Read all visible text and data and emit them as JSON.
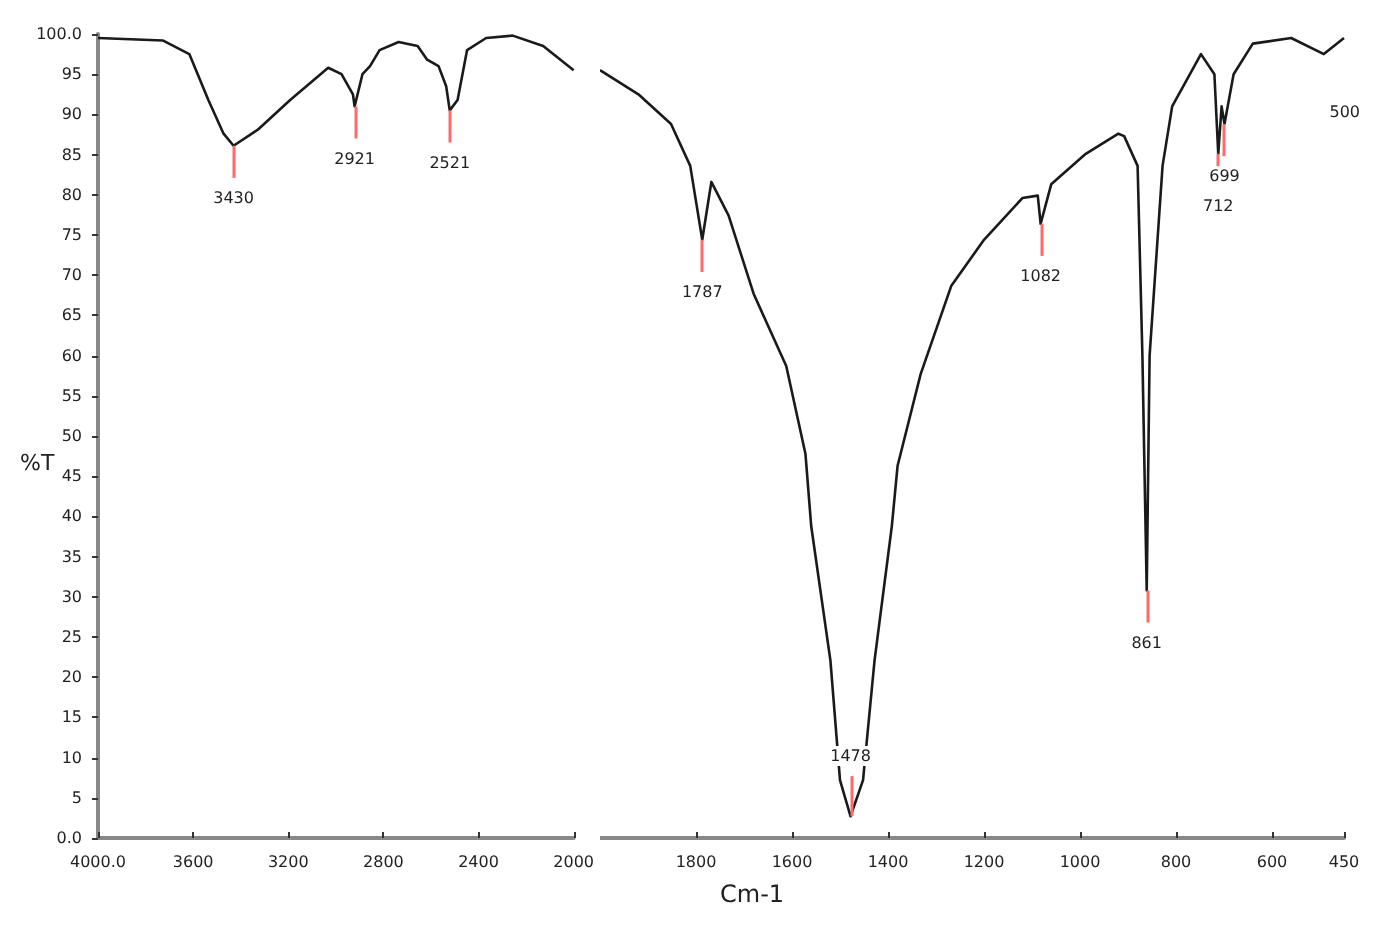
{
  "chart_data": [
    {
      "type": "line",
      "ylabel": "%T",
      "xlim": [
        4000,
        2000
      ],
      "xticks": [
        {
          "value": 4000,
          "label": "4000.0"
        },
        3600,
        3200,
        2800,
        2400,
        2000
      ],
      "ylim": [
        0,
        100
      ],
      "yticks": [
        {
          "value": 0,
          "label": "0.0"
        },
        5,
        10,
        15,
        20,
        25,
        30,
        35,
        40,
        45,
        50,
        55,
        60,
        65,
        70,
        75,
        80,
        85,
        90,
        95,
        {
          "value": 100,
          "label": "100.0"
        }
      ],
      "grid": false,
      "marker": "none",
      "line_style": "solid",
      "series": [
        {
          "color": "#1a1a1a",
          "x": [
            4000,
            3728,
            3616,
            3536,
            3472,
            3430,
            3328,
            3192,
            3032,
            2976,
            2928,
            2921,
            2888,
            2856,
            2816,
            2736,
            2656,
            2616,
            2568,
            2536,
            2521,
            2488,
            2448,
            2368,
            2256,
            2128,
            2000
          ],
          "values": [
            99.5,
            99.2,
            97.5,
            91.8,
            87.6,
            86.1,
            88.1,
            91.8,
            95.8,
            95.0,
            92.5,
            91.0,
            95.0,
            96.0,
            98.0,
            99.0,
            98.5,
            96.8,
            96.0,
            93.5,
            90.5,
            91.8,
            98.0,
            99.5,
            99.8,
            98.5,
            95.5
          ]
        }
      ],
      "annotations": [
        {
          "text": "3430",
          "x": 3430,
          "y": 86.1
        },
        {
          "text": "2921",
          "x": 2921,
          "y": 91.0
        },
        {
          "text": "2521",
          "x": 2521,
          "y": 90.5
        }
      ]
    },
    {
      "type": "line",
      "xlabel": "Cm-1",
      "xlim": [
        2000,
        450
      ],
      "xticks": [
        1800,
        1600,
        1400,
        1200,
        1000,
        800,
        600,
        450
      ],
      "ylim": [
        0,
        100
      ],
      "tick_labels": "x",
      "grid": false,
      "marker": "none",
      "line_style": "solid",
      "series": [
        {
          "color": "#1a1a1a",
          "x": [
            2000,
            1920,
            1852,
            1812,
            1787,
            1768,
            1732,
            1680,
            1612,
            1572,
            1560,
            1520,
            1500,
            1478,
            1452,
            1428,
            1392,
            1380,
            1332,
            1268,
            1200,
            1120,
            1088,
            1082,
            1060,
            988,
            920,
            908,
            880,
            870,
            861,
            855,
            828,
            808,
            748,
            720,
            712,
            705,
            699,
            680,
            640,
            560,
            492,
            450
          ],
          "values": [
            95.5,
            92.5,
            88.8,
            83.6,
            74.4,
            81.6,
            77.4,
            67.7,
            58.7,
            47.8,
            38.8,
            22.1,
            7.2,
            2.7,
            7.2,
            22.1,
            38.8,
            46.3,
            57.7,
            68.7,
            74.4,
            79.6,
            79.9,
            76.4,
            81.3,
            85.1,
            87.6,
            87.3,
            83.6,
            60.0,
            30.8,
            60.0,
            83.6,
            91.0,
            97.5,
            95.0,
            85.1,
            91.0,
            88.8,
            95.0,
            98.8,
            99.5,
            97.5,
            99.5
          ]
        }
      ],
      "annotations": [
        {
          "text": "1787",
          "x": 1787,
          "y": 74.4
        },
        {
          "text": "1478",
          "x": 1478,
          "y": 2.7
        },
        {
          "text": "1082",
          "x": 1082,
          "y": 76.4
        },
        {
          "text": "861",
          "x": 861,
          "y": 30.8
        },
        {
          "text": "712",
          "x": 712,
          "y": 85.1
        },
        {
          "text": "699",
          "x": 699,
          "y": 88.8
        },
        "500"
      ]
    }
  ]
}
